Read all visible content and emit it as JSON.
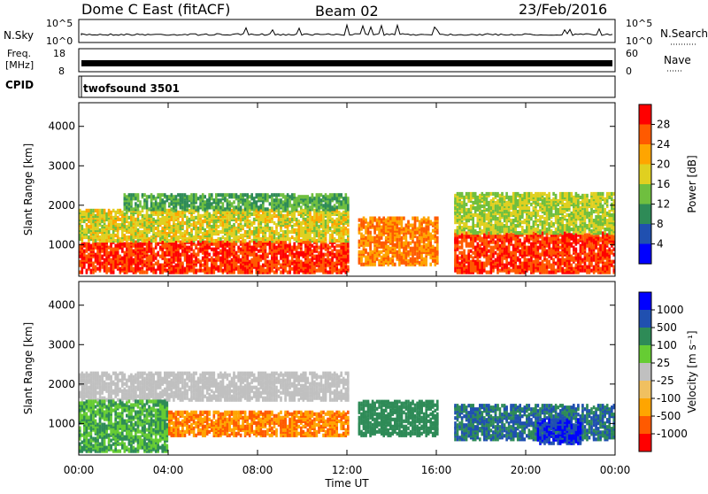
{
  "header": {
    "station": "Dome C East (fitACF)",
    "beam": "Beam 02",
    "date": "23/Feb/2016"
  },
  "top_panels": {
    "nsky_label": "N.Sky",
    "nsky_ticks": [
      "10^5",
      "10^0"
    ],
    "nsearch_label": "N.Search",
    "nsearch_ticks": [
      "10^5",
      "10^0"
    ],
    "freq_label_1": "Freq.",
    "freq_label_2": "[MHz]",
    "freq_ticks": [
      "18",
      "8"
    ],
    "nave_label": "Nave",
    "nave_ticks": [
      "60",
      "0"
    ],
    "cpid_label": "CPID",
    "cpid_value": "twofsound 3501"
  },
  "colors": {
    "power_scale": [
      "#0000ff",
      "#2050b0",
      "#2e8b57",
      "#6fbf3f",
      "#e0d020",
      "#ffa500",
      "#ff5a00",
      "#ff0000"
    ],
    "velocity_scale": [
      "#ff0000",
      "#ff5a00",
      "#ffa500",
      "#f0c060",
      "#c0c0c0",
      "#66cc33",
      "#2e8b57",
      "#2050b0",
      "#0000ff"
    ]
  },
  "chart_data": [
    {
      "type": "heatmap",
      "name": "power",
      "ylabel": "Slant Range [km]",
      "yticks": [
        "4000",
        "3000",
        "2000",
        "1000"
      ],
      "ylim": [
        200,
        4600
      ],
      "xticks": [
        "00:00",
        "04:00",
        "08:00",
        "12:00",
        "16:00",
        "20:00",
        "00:00"
      ],
      "colorbar_label": "Power [dB]",
      "colorbar_ticks": [
        "28",
        "24",
        "20",
        "16",
        "12",
        "8",
        "4"
      ],
      "colorbar_range": [
        0,
        32
      ],
      "regions": [
        {
          "t0": 0,
          "t1": 12,
          "r0": 300,
          "r1": 1100,
          "v": 28
        },
        {
          "t0": 0,
          "t1": 12,
          "r0": 1100,
          "r1": 1900,
          "v": 18
        },
        {
          "t0": 2,
          "t1": 12,
          "r0": 1900,
          "r1": 2300,
          "v": 12
        },
        {
          "t0": 12.5,
          "t1": 16,
          "r0": 500,
          "r1": 1700,
          "v": 24
        },
        {
          "t0": 16.8,
          "t1": 24,
          "r0": 300,
          "r1": 1300,
          "v": 28
        },
        {
          "t0": 16.8,
          "t1": 24,
          "r0": 1300,
          "r1": 2300,
          "v": 16
        }
      ]
    },
    {
      "type": "heatmap",
      "name": "velocity",
      "ylabel": "Slant Range [km]",
      "yticks": [
        "4000",
        "3000",
        "2000",
        "1000"
      ],
      "ylim": [
        200,
        4600
      ],
      "xticks": [
        "00:00",
        "04:00",
        "08:00",
        "12:00",
        "16:00",
        "20:00",
        "00:00"
      ],
      "xlabel": "Time UT",
      "colorbar_label": "Velocity [m s⁻¹]",
      "colorbar_ticks": [
        "1000",
        "500",
        "100",
        "25",
        "-25",
        "-100",
        "-500",
        "-1000"
      ],
      "regions": [
        {
          "t0": 0,
          "t1": 12,
          "r0": 1600,
          "r1": 2300,
          "v": 0
        },
        {
          "t0": 0,
          "t1": 4,
          "r0": 300,
          "r1": 1600,
          "v": 100
        },
        {
          "t0": 4,
          "t1": 12,
          "r0": 700,
          "r1": 1300,
          "v": -100
        },
        {
          "t0": 12.5,
          "t1": 16,
          "r0": 700,
          "r1": 1600,
          "v": 300
        },
        {
          "t0": 16.8,
          "t1": 24,
          "r0": 600,
          "r1": 1500,
          "v": 500
        },
        {
          "t0": 20.5,
          "t1": 22.5,
          "r0": 500,
          "r1": 1100,
          "v": 1000
        }
      ]
    }
  ]
}
